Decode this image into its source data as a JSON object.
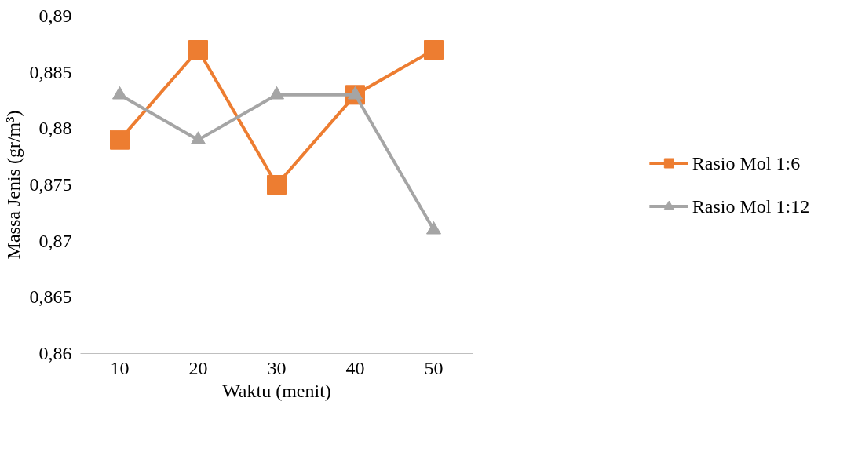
{
  "chart_data": {
    "type": "line",
    "xlabel": "Waktu (menit)",
    "ylabel": "Massa Jenis (gr/m³)",
    "categories": [
      "10",
      "20",
      "30",
      "40",
      "50"
    ],
    "series": [
      {
        "name": "Rasio Mol 1:6",
        "color": "#ed7d31",
        "marker": "square",
        "values": [
          0.879,
          0.887,
          0.875,
          0.883,
          0.887
        ]
      },
      {
        "name": "Rasio Mol 1:12",
        "color": "#a5a5a5",
        "marker": "triangle",
        "values": [
          0.883,
          0.879,
          0.883,
          0.883,
          0.871
        ]
      }
    ],
    "ylim": [
      0.86,
      0.89
    ],
    "yticks": [
      {
        "value": 0.86,
        "label": "0,86"
      },
      {
        "value": 0.865,
        "label": "0,865"
      },
      {
        "value": 0.87,
        "label": "0,87"
      },
      {
        "value": 0.875,
        "label": "0,875"
      },
      {
        "value": 0.88,
        "label": "0,88"
      },
      {
        "value": 0.885,
        "label": "0,885"
      },
      {
        "value": 0.89,
        "label": "0,89"
      }
    ],
    "grid": false,
    "legend": "right",
    "line_style": "solid"
  }
}
